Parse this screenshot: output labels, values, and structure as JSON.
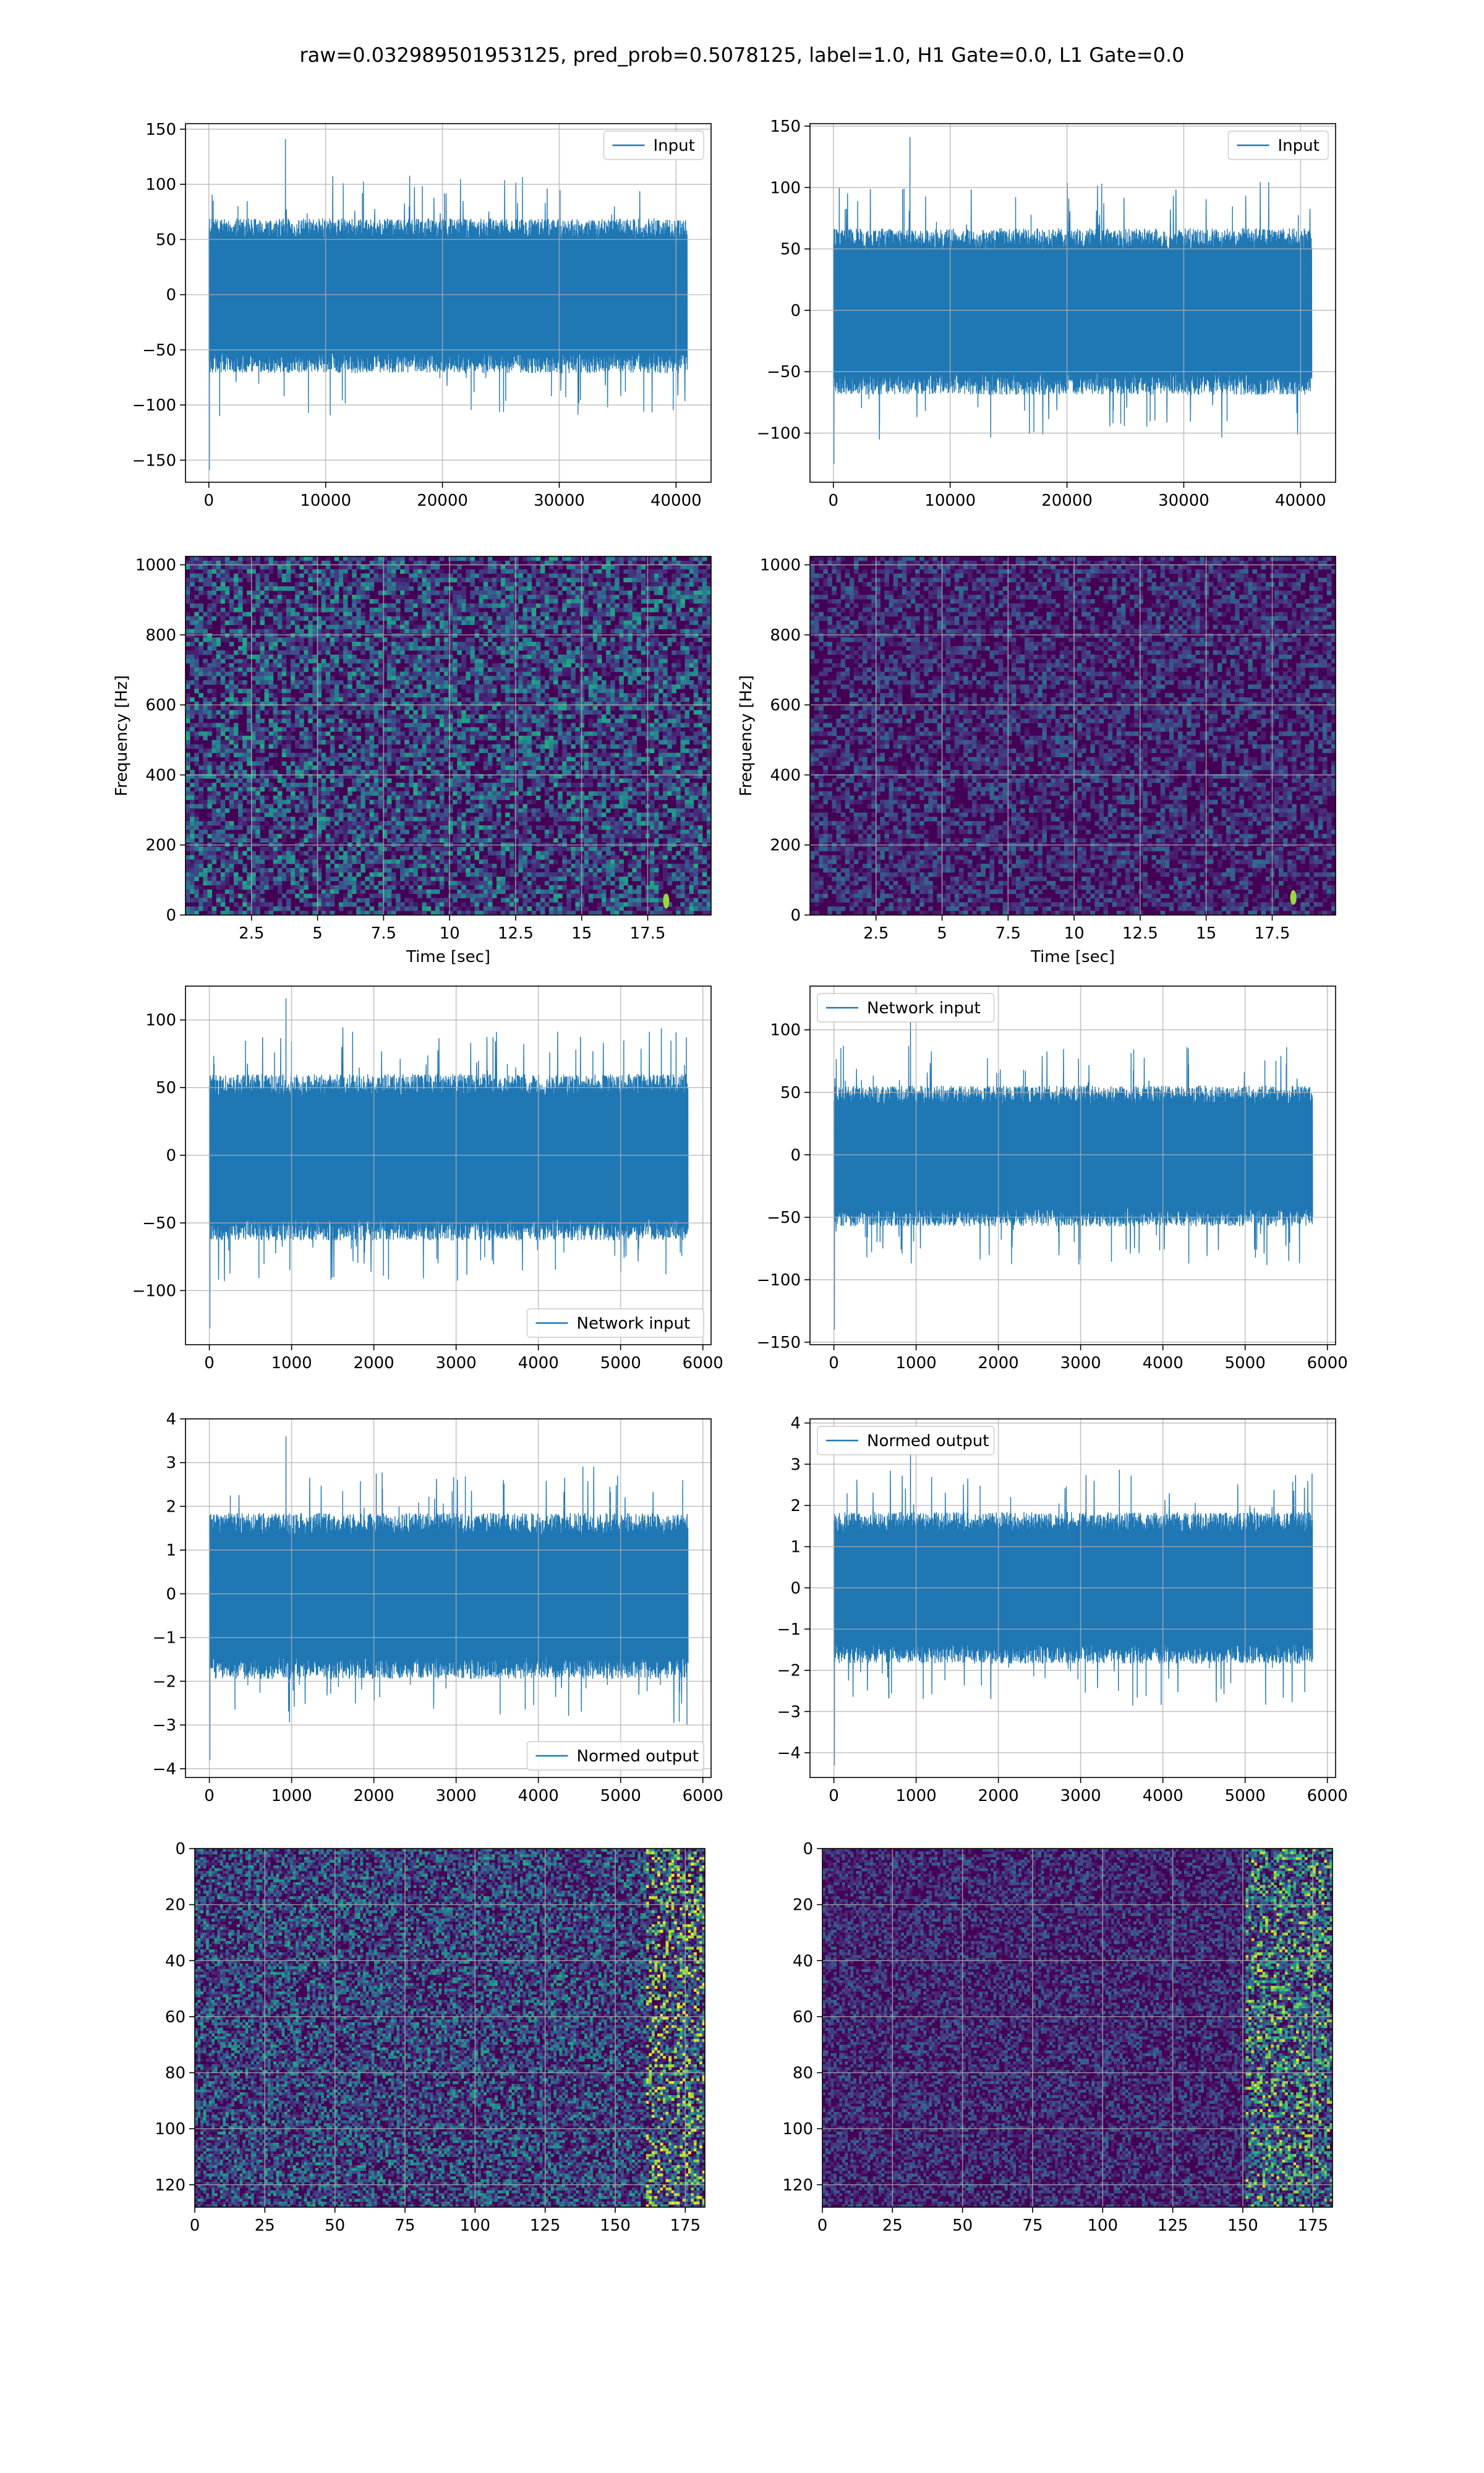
{
  "figure": {
    "title": "raw=0.032989501953125, pred_prob=0.5078125, label=1.0, H1 Gate=0.0, L1 Gate=0.0"
  },
  "colors": {
    "line": "#1f77b4",
    "grid": "#b0b0b0",
    "viridis": [
      "#440154",
      "#482878",
      "#3e4a89",
      "#31688e",
      "#26828e",
      "#1f9e89",
      "#35b779",
      "#6ece58",
      "#b5de2b",
      "#fde725"
    ]
  },
  "chart_data": [
    {
      "id": "h1-input",
      "type": "line",
      "legend": "Input",
      "legend_position": "upper right",
      "xlim": [
        -2000,
        43000
      ],
      "ylim": [
        -170,
        155
      ],
      "xticks": [
        0,
        10000,
        20000,
        30000,
        40000
      ],
      "yticks": [
        -150,
        -100,
        -50,
        0,
        50,
        100,
        150
      ],
      "x_range": [
        0,
        40960
      ],
      "band": [
        -62,
        60
      ],
      "extremes": [
        -159,
        141
      ],
      "grid": true
    },
    {
      "id": "l1-input",
      "type": "line",
      "legend": "Input",
      "legend_position": "upper right",
      "xlim": [
        -2000,
        43000
      ],
      "ylim": [
        -140,
        152
      ],
      "xticks": [
        0,
        10000,
        20000,
        30000,
        40000
      ],
      "yticks": [
        -100,
        -50,
        0,
        50,
        100,
        150
      ],
      "x_range": [
        0,
        40960
      ],
      "band": [
        -60,
        58
      ],
      "extremes": [
        -125,
        141
      ],
      "grid": true
    },
    {
      "id": "h1-spectrogram",
      "type": "heatmap",
      "colormap": "viridis",
      "xlabel": "Time [sec]",
      "ylabel": "Frequency [Hz]",
      "xlim": [
        0,
        19.9
      ],
      "ylim": [
        0,
        1024
      ],
      "xticks": [
        2.5,
        5.0,
        7.5,
        10.0,
        12.5,
        15.0,
        17.5
      ],
      "yticks": [
        0,
        200,
        400,
        600,
        800,
        1000
      ],
      "grid": true,
      "note_feature": {
        "x": 18.2,
        "y": 40
      }
    },
    {
      "id": "l1-spectrogram",
      "type": "heatmap",
      "colormap": "viridis",
      "xlabel": "Time [sec]",
      "ylabel": "Frequency [Hz]",
      "xlim": [
        0,
        19.9
      ],
      "ylim": [
        0,
        1024
      ],
      "xticks": [
        2.5,
        5.0,
        7.5,
        10.0,
        12.5,
        15.0,
        17.5
      ],
      "yticks": [
        0,
        200,
        400,
        600,
        800,
        1000
      ],
      "grid": true,
      "note_feature": {
        "x": 18.3,
        "y": 50
      }
    },
    {
      "id": "h1-network-input",
      "type": "line",
      "legend": "Network input",
      "legend_position": "lower right",
      "xlim": [
        -290,
        6100
      ],
      "ylim": [
        -140,
        125
      ],
      "xticks": [
        0,
        1000,
        2000,
        3000,
        4000,
        5000,
        6000
      ],
      "yticks": [
        -100,
        -50,
        0,
        50,
        100
      ],
      "x_range": [
        0,
        5820
      ],
      "band": [
        -55,
        52
      ],
      "extremes": [
        -128,
        116
      ],
      "grid": true
    },
    {
      "id": "l1-network-input",
      "type": "line",
      "legend": "Network input",
      "legend_position": "upper left",
      "xlim": [
        -290,
        6100
      ],
      "ylim": [
        -152,
        135
      ],
      "xticks": [
        0,
        1000,
        2000,
        3000,
        4000,
        5000,
        6000
      ],
      "yticks": [
        -150,
        -100,
        -50,
        0,
        50,
        100
      ],
      "x_range": [
        0,
        5820
      ],
      "band": [
        -50,
        48
      ],
      "extremes": [
        -140,
        123
      ],
      "grid": true
    },
    {
      "id": "h1-normed-output",
      "type": "line",
      "legend": "Normed output",
      "legend_position": "lower right",
      "xlim": [
        -290,
        6100
      ],
      "ylim": [
        -4.2,
        4.0
      ],
      "xticks": [
        0,
        1000,
        2000,
        3000,
        4000,
        5000,
        6000
      ],
      "yticks": [
        -4,
        -3,
        -2,
        -1,
        0,
        1,
        2,
        3,
        4
      ],
      "x_range": [
        0,
        5820
      ],
      "band": [
        -1.7,
        1.6
      ],
      "extremes": [
        -3.8,
        3.6
      ],
      "grid": true
    },
    {
      "id": "l1-normed-output",
      "type": "line",
      "legend": "Normed output",
      "legend_position": "upper left",
      "xlim": [
        -290,
        6100
      ],
      "ylim": [
        -4.6,
        4.1
      ],
      "xticks": [
        0,
        1000,
        2000,
        3000,
        4000,
        5000,
        6000
      ],
      "yticks": [
        -4,
        -3,
        -2,
        -1,
        0,
        1,
        2,
        3,
        4
      ],
      "x_range": [
        0,
        5820
      ],
      "band": [
        -1.6,
        1.6
      ],
      "extremes": [
        -4.3,
        3.8
      ],
      "grid": true
    },
    {
      "id": "h1-matrix",
      "type": "heatmap",
      "colormap": "viridis",
      "xlim": [
        0,
        182
      ],
      "ylim": [
        128,
        0
      ],
      "xticks": [
        0,
        25,
        50,
        75,
        100,
        125,
        150,
        175
      ],
      "yticks": [
        0,
        20,
        40,
        60,
        80,
        100,
        120
      ],
      "grid": true
    },
    {
      "id": "l1-matrix",
      "type": "heatmap",
      "colormap": "viridis",
      "xlim": [
        0,
        182
      ],
      "ylim": [
        128,
        0
      ],
      "xticks": [
        0,
        25,
        50,
        75,
        100,
        125,
        150,
        175
      ],
      "yticks": [
        0,
        20,
        40,
        60,
        80,
        100,
        120
      ],
      "grid": true
    }
  ]
}
